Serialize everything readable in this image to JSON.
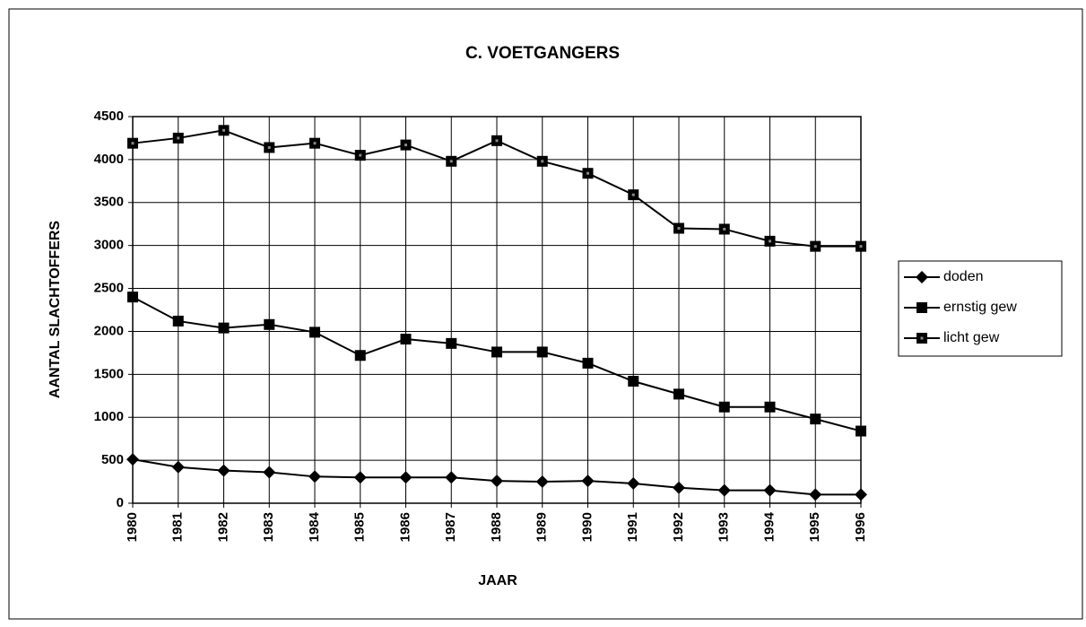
{
  "chart_data": {
    "type": "line",
    "title": "C. VOETGANGERS",
    "x_label": "JAAR",
    "y_label": "AANTAL SLACHTOFFERS",
    "categories": [
      "1980",
      "1981",
      "1982",
      "1983",
      "1984",
      "1985",
      "1986",
      "1987",
      "1988",
      "1989",
      "1990",
      "1991",
      "1992",
      "1993",
      "1994",
      "1995",
      "1996"
    ],
    "series": [
      {
        "name": "doden",
        "color": "#000000",
        "marker": "diamond",
        "values": [
          510,
          420,
          380,
          360,
          310,
          300,
          300,
          300,
          260,
          250,
          260,
          230,
          180,
          150,
          150,
          100,
          100
        ]
      },
      {
        "name": "ernstig gew",
        "color": "#000000",
        "marker": "square",
        "values": [
          2400,
          2120,
          2040,
          2080,
          1990,
          1720,
          1910,
          1860,
          1760,
          1760,
          1630,
          1420,
          1270,
          1120,
          1120,
          980,
          840
        ]
      },
      {
        "name": "licht gew",
        "color": "#000000",
        "marker": "dotted-square",
        "values": [
          4190,
          4250,
          4340,
          4140,
          4190,
          4050,
          4170,
          3980,
          4220,
          3980,
          3840,
          3590,
          3200,
          3190,
          3050,
          2990,
          2990
        ]
      }
    ],
    "ylim": [
      0,
      4500
    ],
    "yticks": [
      0,
      500,
      1000,
      1500,
      2000,
      2500,
      3000,
      3500,
      4000,
      4500
    ],
    "grid": true,
    "legend": "right"
  }
}
